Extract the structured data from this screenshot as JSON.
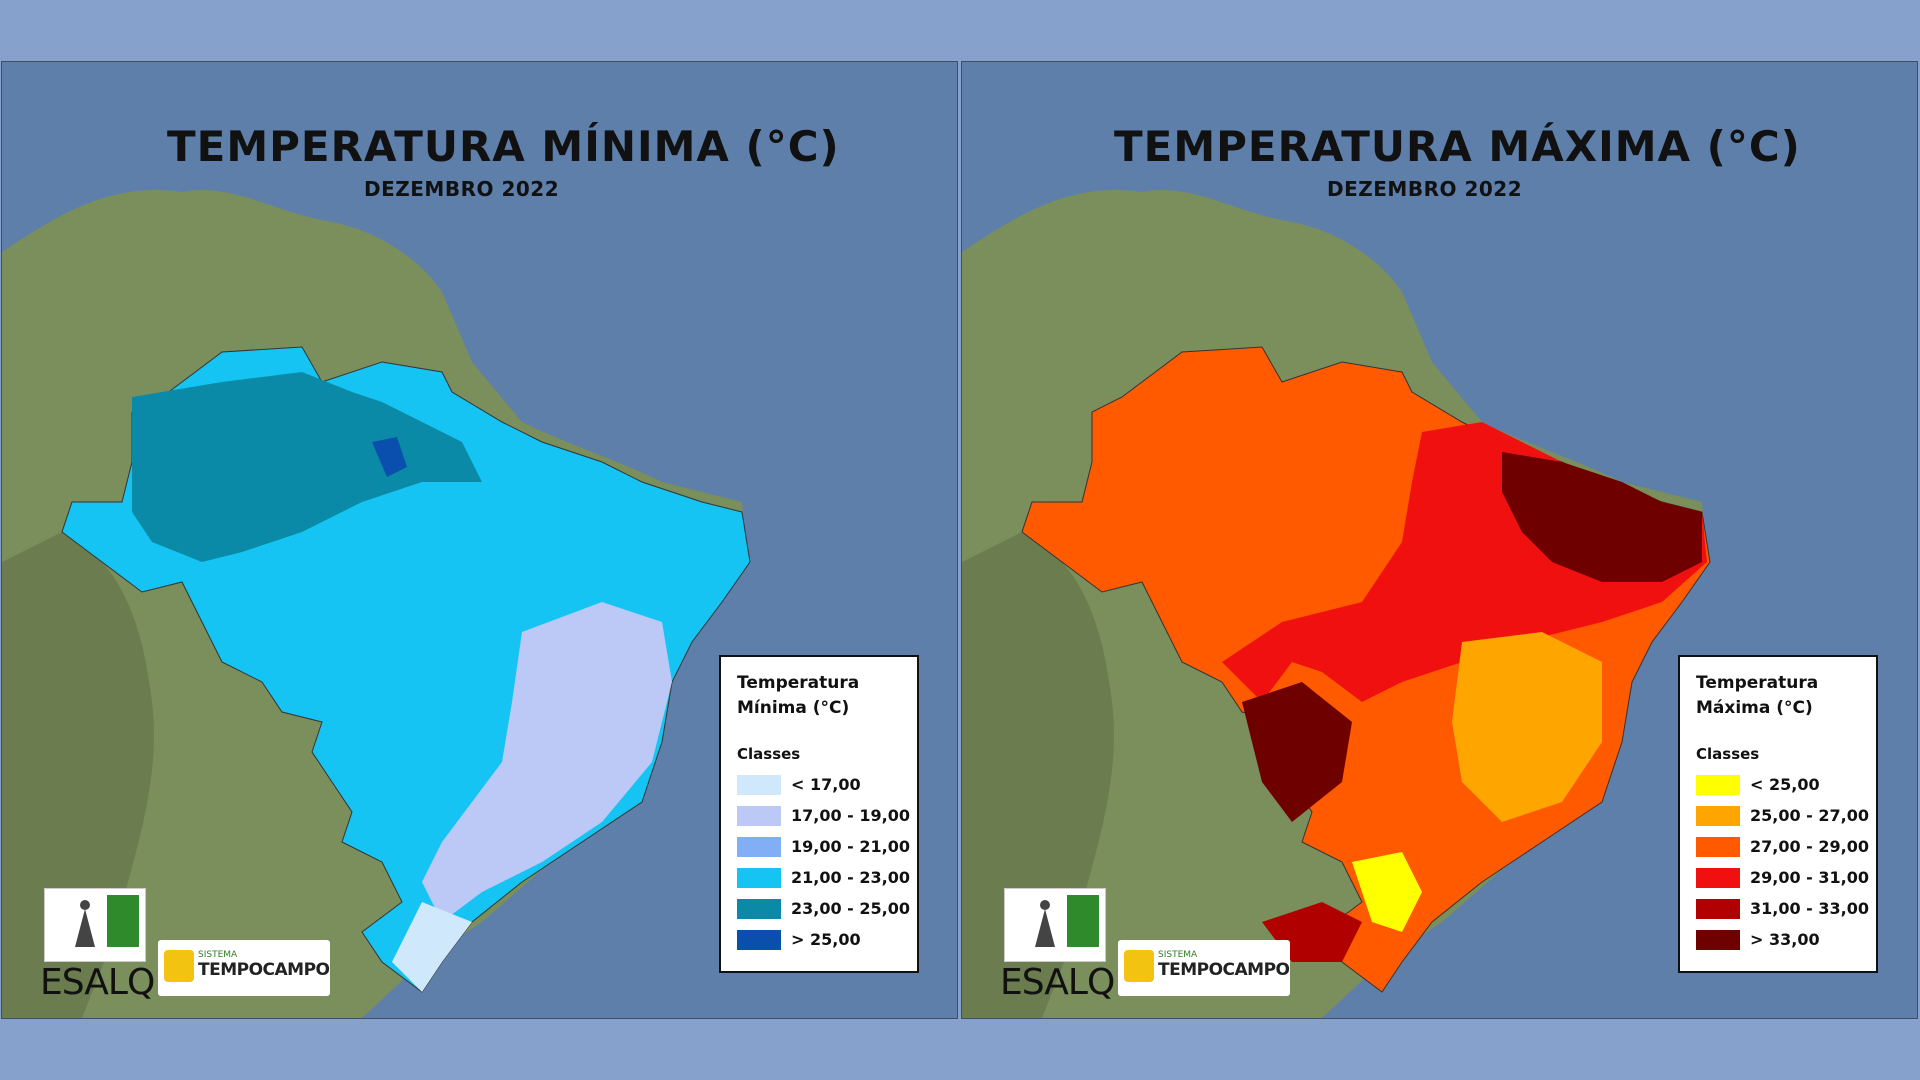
{
  "colors": {
    "ocean": "#5e7fa9",
    "land": "#7b8f5c",
    "background": "#86a2cc"
  },
  "left_panel": {
    "title": "TEMPERATURA MÍNIMA (°C)",
    "subtitle": "DEZEMBRO 2022",
    "legend": {
      "title": "Temperatura Mínima (°C)",
      "classes_label": "Classes",
      "items": [
        {
          "label": "< 17,00",
          "color": "#cfe8fb"
        },
        {
          "label": "17,00 - 19,00",
          "color": "#bcc8f5"
        },
        {
          "label": "19,00 - 21,00",
          "color": "#82aef5"
        },
        {
          "label": "21,00 - 23,00",
          "color": "#15c4f2"
        },
        {
          "label": "23,00 - 25,00",
          "color": "#0a8aa6"
        },
        {
          "label": "> 25,00",
          "color": "#0a4fae"
        }
      ]
    }
  },
  "right_panel": {
    "title": "TEMPERATURA MÁXIMA (°C)",
    "subtitle": "DEZEMBRO 2022",
    "legend": {
      "title": "Temperatura Máxima (°C)",
      "classes_label": "Classes",
      "items": [
        {
          "label": "< 25,00",
          "color": "#ffff00"
        },
        {
          "label": "25,00 - 27,00",
          "color": "#ffa500"
        },
        {
          "label": "27,00 - 29,00",
          "color": "#ff5a00"
        },
        {
          "label": "29,00 - 31,00",
          "color": "#f01010"
        },
        {
          "label": "31,00 - 33,00",
          "color": "#b00000"
        },
        {
          "label": "> 33,00",
          "color": "#6e0000"
        }
      ]
    }
  },
  "logos": {
    "esalq": "ESALQ",
    "tempo_small": "SISTEMA",
    "tempo_big": "TEMPOCAMPO"
  }
}
